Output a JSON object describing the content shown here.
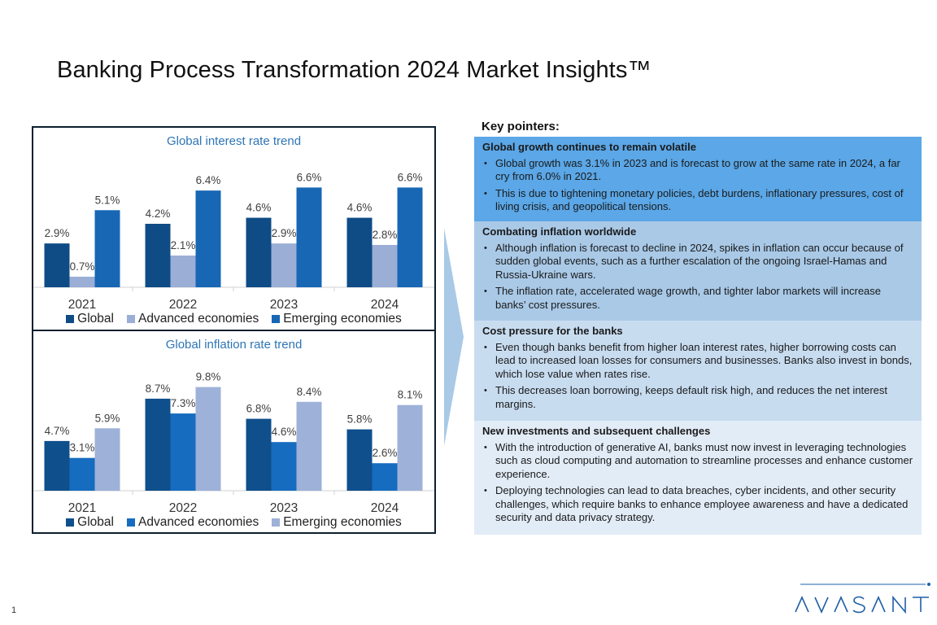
{
  "page": {
    "title": "Banking Process Transformation 2024 Market Insights™",
    "page_number": "1",
    "logo_text": "AVASANT"
  },
  "chart_data": [
    {
      "type": "bar",
      "title": "Global interest rate trend",
      "categories": [
        "2021",
        "2022",
        "2023",
        "2024"
      ],
      "series": [
        {
          "name": "Global",
          "values": [
            2.9,
            4.2,
            4.6,
            4.6
          ],
          "labels": [
            "2.9%",
            "4.2%",
            "4.6%",
            "4.6%"
          ],
          "color": "#0f4c86"
        },
        {
          "name": "Advanced economies",
          "values": [
            0.7,
            2.1,
            2.9,
            2.8
          ],
          "labels": [
            "0.7%",
            "2.1%",
            "2.9%",
            "2.8%"
          ],
          "color": "#9aaed6"
        },
        {
          "name": "Emerging economies",
          "values": [
            5.1,
            6.4,
            6.6,
            6.6
          ],
          "labels": [
            "5.1%",
            "6.4%",
            "6.6%",
            "6.6%"
          ],
          "color": "#1767b5"
        }
      ],
      "unit": "%",
      "ylim": [
        0,
        7
      ],
      "grid": false,
      "legend": "bottom"
    },
    {
      "type": "bar",
      "title": "Global inflation rate trend",
      "categories": [
        "2021",
        "2022",
        "2023",
        "2024"
      ],
      "series": [
        {
          "name": "Global",
          "values": [
            4.7,
            8.7,
            6.8,
            5.8
          ],
          "labels": [
            "4.7%",
            "8.7%",
            "6.8%",
            "5.8%"
          ],
          "color": "#0f4f8c"
        },
        {
          "name": "Advanced economies",
          "values": [
            3.1,
            7.3,
            4.6,
            2.6
          ],
          "labels": [
            "3.1%",
            "7.3%",
            "4.6%",
            "2.6%"
          ],
          "color": "#166cbf"
        },
        {
          "name": "Emerging economies",
          "values": [
            5.9,
            9.8,
            8.4,
            8.1
          ],
          "labels": [
            "5.9%",
            "9.8%",
            "8.4%",
            "8.1%"
          ],
          "color": "#9eb1d8"
        }
      ],
      "unit": "%",
      "ylim": [
        0,
        10
      ],
      "grid": false,
      "legend": "bottom"
    }
  ],
  "key_pointers": {
    "title": "Key pointers:",
    "sections": [
      {
        "heading": "Global growth continues to remain volatile",
        "bg": "#5ba7e7",
        "bullets": [
          "Global growth was 3.1% in 2023 and is forecast to grow at the same rate in 2024, a far cry from 6.0% in 2021.",
          "This is due to tightening monetary policies, debt burdens, inflationary pressures, cost of living crisis, and geopolitical tensions."
        ]
      },
      {
        "heading": "Combating inflation worldwide",
        "bg": "#a9c9e7",
        "bullets": [
          "Although inflation is forecast to decline in 2024, spikes in inflation can occur because of sudden global events, such as a further escalation of the ongoing Israel-Hamas and Russia-Ukraine wars.",
          "The inflation rate, accelerated wage growth, and tighter labor markets will increase banks’ cost pressures."
        ]
      },
      {
        "heading": "Cost pressure for the banks",
        "bg": "#c8dcf0",
        "bullets": [
          "Even though banks benefit from higher loan interest rates, higher borrowing costs can lead to increased loan losses for consumers and businesses. Banks also invest in bonds, which lose value when rates rise.",
          "This decreases loan borrowing, keeps default risk high, and reduces the net interest margins."
        ]
      },
      {
        "heading": "New investments and subsequent challenges",
        "bg": "#e2ecf7",
        "bullets": [
          "With the introduction of generative AI, banks must now invest in leveraging technologies such as cloud computing and automation to streamline processes and enhance customer experience.",
          "Deploying technologies can lead to data breaches, cyber incidents, and other security challenges, which require banks to enhance employee awareness and have a dedicated security and data privacy strategy."
        ]
      }
    ]
  }
}
